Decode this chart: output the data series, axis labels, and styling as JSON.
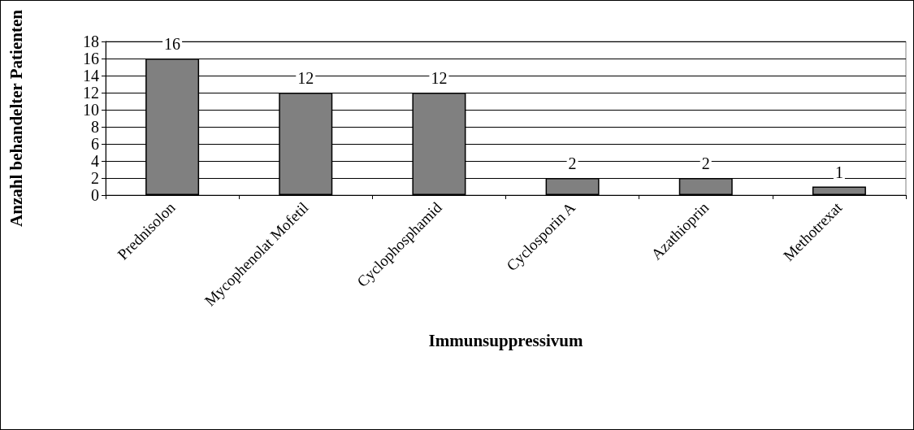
{
  "chart_data": {
    "type": "bar",
    "xlabel": "Immunsuppressivum",
    "ylabel": "Anzahl behandelter Patienten",
    "categories": [
      "Prednisolon",
      "Mycophenolat Mofetil",
      "Cyclophosphamid",
      "Cyclosporin A",
      "Azathioprin",
      "Methotrexat"
    ],
    "values": [
      16,
      12,
      12,
      2,
      2,
      1
    ],
    "color": "#808080",
    "ylim": [
      0,
      18
    ],
    "yticks": [
      0,
      2,
      4,
      6,
      8,
      10,
      12,
      14,
      16,
      18
    ],
    "grid": "y",
    "data_labels": true
  }
}
